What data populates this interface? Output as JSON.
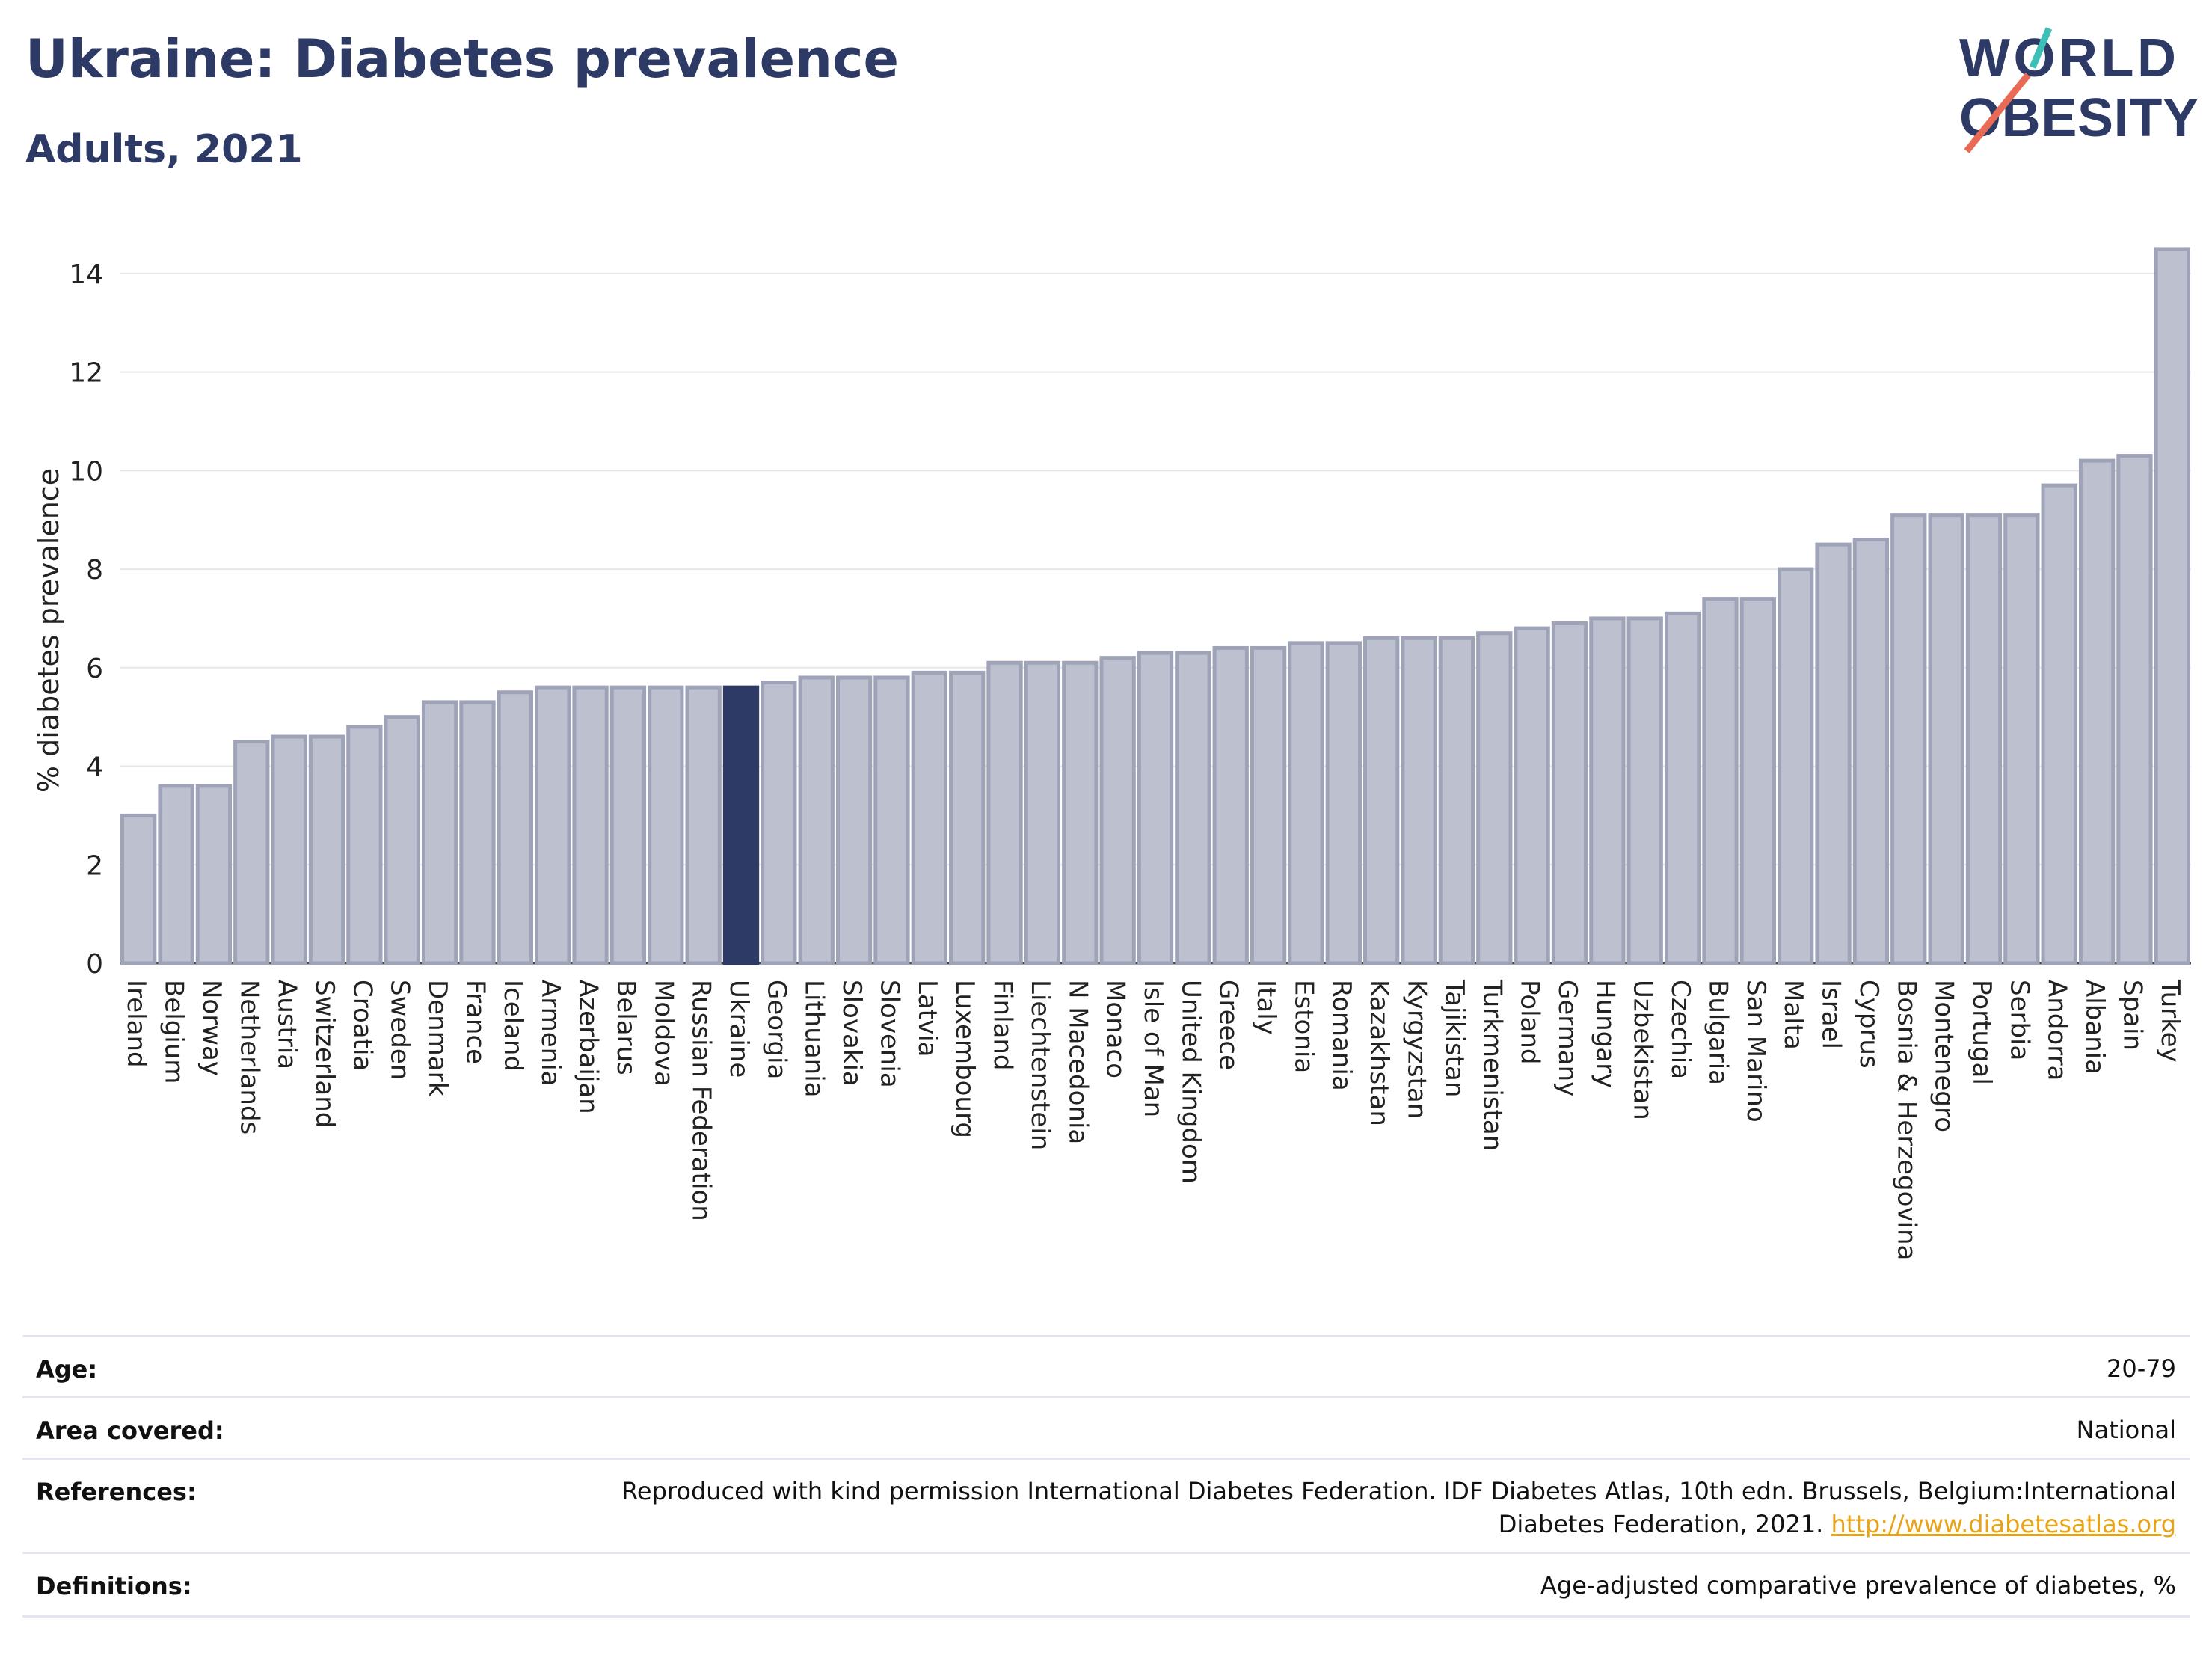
{
  "header": {
    "title": "Ukraine: Diabetes prevalence",
    "subtitle": "Adults, 2021"
  },
  "logo": {
    "line1": "WORLD",
    "line2": "OBESITY"
  },
  "chart_data": {
    "type": "bar",
    "ylabel": "% diabetes prevalence",
    "xlabel": "",
    "ylim": [
      0,
      15
    ],
    "yticks": [
      0,
      2,
      4,
      6,
      8,
      10,
      12,
      14
    ],
    "grid": true,
    "highlight": "Ukraine",
    "colors": {
      "bar": "#bcc0cf",
      "bar_border": "#9ea3b8",
      "highlight": "#2d3a66",
      "grid": "#e6e6e6"
    },
    "categories": [
      "Ireland",
      "Belgium",
      "Norway",
      "Netherlands",
      "Austria",
      "Switzerland",
      "Croatia",
      "Sweden",
      "Denmark",
      "France",
      "Iceland",
      "Armenia",
      "Azerbaijan",
      "Belarus",
      "Moldova",
      "Russian Federation",
      "Ukraine",
      "Georgia",
      "Lithuania",
      "Slovakia",
      "Slovenia",
      "Latvia",
      "Luxembourg",
      "Finland",
      "Liechtenstein",
      "N Macedonia",
      "Monaco",
      "Isle of Man",
      "United Kingdom",
      "Greece",
      "Italy",
      "Estonia",
      "Romania",
      "Kazakhstan",
      "Kyrgyzstan",
      "Tajikistan",
      "Turkmenistan",
      "Poland",
      "Germany",
      "Hungary",
      "Uzbekistan",
      "Czechia",
      "Bulgaria",
      "San Marino",
      "Malta",
      "Israel",
      "Cyprus",
      "Bosnia & Herzegovina",
      "Montenegro",
      "Portugal",
      "Serbia",
      "Andorra",
      "Albania",
      "Spain",
      "Turkey"
    ],
    "values": [
      3.0,
      3.6,
      3.6,
      4.5,
      4.6,
      4.6,
      4.8,
      5.0,
      5.3,
      5.3,
      5.5,
      5.6,
      5.6,
      5.6,
      5.6,
      5.6,
      5.6,
      5.7,
      5.8,
      5.8,
      5.8,
      5.9,
      5.9,
      6.1,
      6.1,
      6.1,
      6.2,
      6.3,
      6.3,
      6.4,
      6.4,
      6.5,
      6.5,
      6.6,
      6.6,
      6.6,
      6.7,
      6.8,
      6.9,
      7.0,
      7.0,
      7.1,
      7.4,
      7.4,
      8.0,
      8.5,
      8.6,
      9.1,
      9.1,
      9.1,
      9.1,
      9.7,
      10.2,
      10.3,
      14.5
    ]
  },
  "info_table": [
    {
      "label": "Age:",
      "value": "20-79"
    },
    {
      "label": "Area covered:",
      "value": "National"
    },
    {
      "label": "References:",
      "value_line1": "Reproduced with kind permission International Diabetes Federation.  IDF Diabetes Atlas, 10th edn. Brussels, Belgium:International",
      "value_line2": "Diabetes Federation, 2021. ",
      "link": "http://www.diabetesatlas.org"
    },
    {
      "label": "Definitions:",
      "value": "Age-adjusted comparative prevalence of diabetes, %"
    }
  ]
}
